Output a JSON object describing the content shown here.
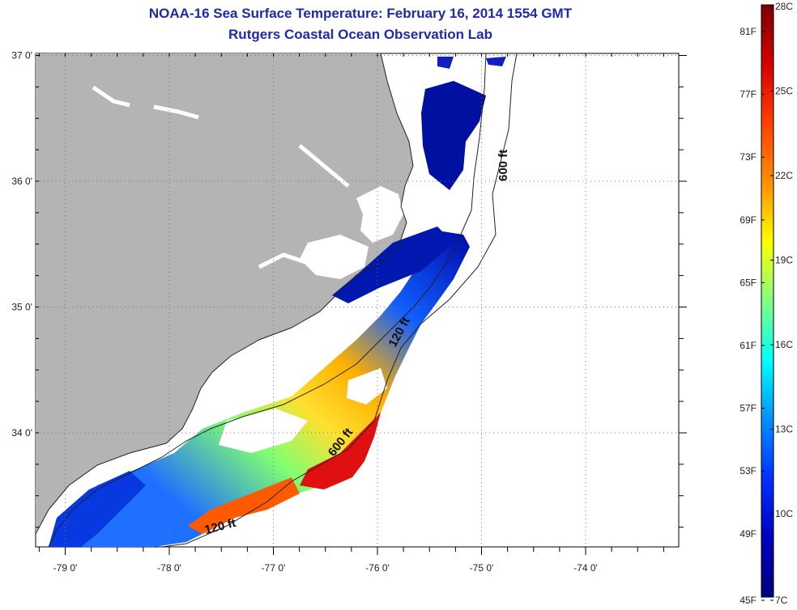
{
  "title": "NOAA-16 Sea Surface Temperature:  February 16, 2014 1554 GMT",
  "subtitle": "Rutgers Coastal Ocean Observation Lab",
  "map": {
    "lat_labels": [
      {
        "lat": 37,
        "label": "37 0'"
      },
      {
        "lat": 36,
        "label": "36 0'"
      },
      {
        "lat": 35,
        "label": "35 0'"
      },
      {
        "lat": 34,
        "label": "34 0'"
      }
    ],
    "lon_labels": [
      {
        "lon": -79,
        "label": "-79 0'"
      },
      {
        "lon": -78,
        "label": "-78 0'"
      },
      {
        "lon": -77,
        "label": "-77 0'"
      },
      {
        "lon": -76,
        "label": "-76 0'"
      },
      {
        "lon": -75,
        "label": "-75 0'"
      },
      {
        "lon": -74,
        "label": "-74 0'"
      }
    ],
    "isobath_labels": [
      {
        "text": "600 ft",
        "depth": "600"
      },
      {
        "text": "120 ft",
        "depth": "120"
      },
      {
        "text": "600 ft",
        "depth": "600"
      },
      {
        "text": "120 ft",
        "depth": "120"
      }
    ],
    "colors": {
      "land": "#b4b4b4",
      "cloud": "#ffffff",
      "grid": "#777777"
    }
  },
  "colorbar": {
    "fahrenheit": [
      "81F",
      "77F",
      "73F",
      "69F",
      "65F",
      "61F",
      "57F",
      "53F",
      "49F",
      "45F"
    ],
    "celsius": [
      "28C",
      "25C",
      "22C",
      "19C",
      "16C",
      "13C",
      "10C",
      "7C"
    ],
    "stops": [
      "#800000",
      "#d40000",
      "#ff4000",
      "#ff9000",
      "#ffff00",
      "#80ff80",
      "#00ffff",
      "#0090ff",
      "#0030ff",
      "#0000c0",
      "#000080"
    ]
  }
}
